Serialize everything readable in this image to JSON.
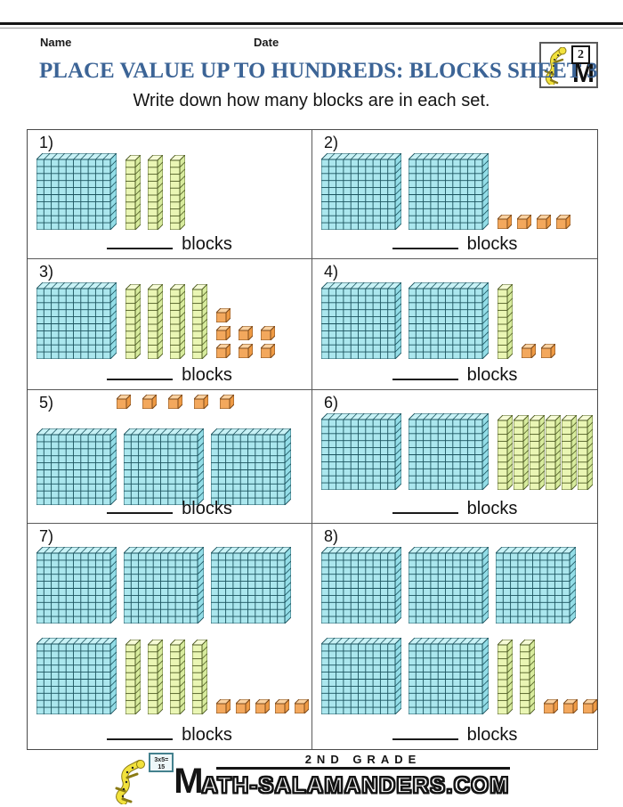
{
  "page": {
    "name_label": "Name",
    "date_label": "Date",
    "title": "PLACE VALUE UP TO HUNDREDS: BLOCKS SHEET 3",
    "instruction": "Write down how many blocks are in each set.",
    "answer_suffix": "blocks"
  },
  "logo_top": {
    "grade_number": "2",
    "letter": "M"
  },
  "footer": {
    "sign_line1": "3x5=",
    "sign_line2": "15",
    "grade_text": "2ND GRADE",
    "site_first_letter": "M",
    "site_rest": "ATH-SALAMANDERS.COM"
  },
  "colors": {
    "title": "#3c6496",
    "hundred_face": "#abe7ee",
    "hundred_top": "#c8f2f6",
    "hundred_side": "#93dde7",
    "hundred_stroke": "#1b535e",
    "ten_face": "#eaf6b4",
    "ten_top": "#f6fbd6",
    "ten_side": "#d7eb9d",
    "ten_stroke": "#4f5c24",
    "one_face": "#f3a85d",
    "one_top": "#fad2a1",
    "one_side": "#ee9a44",
    "one_stroke": "#7d4a1c"
  },
  "problems": [
    {
      "number": "1)",
      "hundreds": 1,
      "tens": 3,
      "ones": 0,
      "rows": [
        [
          {
            "type": "hundreds",
            "count": 1
          },
          {
            "type": "tens",
            "count": 3
          }
        ]
      ]
    },
    {
      "number": "2)",
      "hundreds": 2,
      "tens": 0,
      "ones": 4,
      "rows": [
        [
          {
            "type": "hundreds",
            "count": 2
          },
          {
            "type": "ones",
            "count": 4,
            "layout": "row"
          }
        ]
      ]
    },
    {
      "number": "3)",
      "hundreds": 1,
      "tens": 4,
      "ones": 7,
      "rows": [
        [
          {
            "type": "hundreds",
            "count": 1
          },
          {
            "type": "tens",
            "count": 4
          },
          {
            "type": "ones",
            "count": 7,
            "layout": "cluster"
          }
        ]
      ]
    },
    {
      "number": "4)",
      "hundreds": 2,
      "tens": 1,
      "ones": 2,
      "rows": [
        [
          {
            "type": "hundreds",
            "count": 2
          },
          {
            "type": "tens",
            "count": 1
          },
          {
            "type": "ones",
            "count": 2,
            "layout": "row"
          }
        ]
      ]
    },
    {
      "number": "5)",
      "hundreds": 3,
      "tens": 0,
      "ones": 5,
      "ones_on_top": true,
      "rows": [
        [
          {
            "type": "ones",
            "count": 5,
            "layout": "top"
          }
        ],
        [
          {
            "type": "hundreds",
            "count": 3
          }
        ]
      ]
    },
    {
      "number": "6)",
      "hundreds": 2,
      "tens": 6,
      "ones": 0,
      "rows": [
        [
          {
            "type": "hundreds",
            "count": 2
          },
          {
            "type": "tens",
            "count": 6
          }
        ]
      ]
    },
    {
      "number": "7)",
      "hundreds": 4,
      "tens": 4,
      "ones": 5,
      "rows": [
        [
          {
            "type": "hundreds",
            "count": 3
          }
        ],
        [
          {
            "type": "hundreds",
            "count": 1
          },
          {
            "type": "tens",
            "count": 4
          },
          {
            "type": "ones",
            "count": 5,
            "layout": "row"
          }
        ]
      ]
    },
    {
      "number": "8)",
      "hundreds": 5,
      "tens": 2,
      "ones": 3,
      "rows": [
        [
          {
            "type": "hundreds",
            "count": 3
          }
        ],
        [
          {
            "type": "hundreds",
            "count": 2
          },
          {
            "type": "tens",
            "count": 2
          },
          {
            "type": "ones",
            "count": 3,
            "layout": "row"
          }
        ]
      ]
    }
  ]
}
